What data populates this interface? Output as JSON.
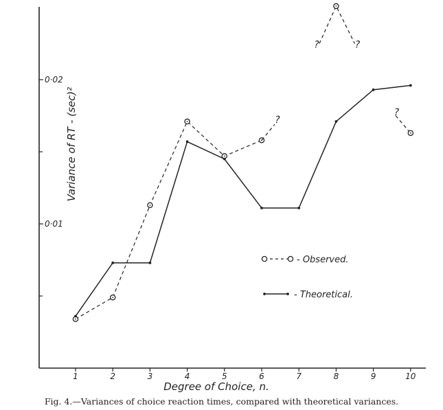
{
  "chart_data": {
    "type": "line",
    "ylabel": "Variance of RT - (sec)²",
    "xlabel": "Degree of Choice, n.",
    "caption": "Fig. 4.—Variances of choice reaction times, compared with theoretical variances.",
    "x_ticks": [
      "1",
      "2",
      "3",
      "4",
      "5",
      "6",
      "7",
      "8",
      "9",
      "10"
    ],
    "y_ticks": [
      {
        "value": 0.01,
        "label": "0·01"
      },
      {
        "value": 0.02,
        "label": "0·02"
      }
    ],
    "y_minor_ticks": [
      0.005,
      0.015
    ],
    "xlim": [
      0,
      10.2
    ],
    "ylim": [
      0,
      0.0255
    ],
    "series": [
      {
        "name": "Observed",
        "legend_label": "- Observed.",
        "style": "dashed-circle",
        "points": [
          [
            1,
            0.0034
          ],
          [
            2,
            0.0049
          ],
          [
            3,
            0.0113
          ],
          [
            4,
            0.0171
          ],
          [
            5,
            0.0147
          ],
          [
            6,
            0.0158
          ]
        ],
        "uncertain": {
          "label": "?",
          "from": [
            6,
            0.0158
          ],
          "to": [
            6.35,
            0.0169
          ]
        }
      },
      {
        "name": "Observed (n = 7–9, uncertain)",
        "style": "dashed-circle",
        "points": [
          [
            7.55,
            0.0225
          ],
          [
            8,
            0.0251
          ],
          [
            8.5,
            0.0225
          ]
        ],
        "markers": [
          [
            8,
            0.0251
          ]
        ],
        "labels": [
          {
            "text": "?",
            "at": [
              7.55,
              0.0225
            ]
          },
          {
            "text": "?",
            "at": [
              8.5,
              0.0225
            ]
          }
        ]
      },
      {
        "name": "Observed (n = 10, uncertain)",
        "style": "dashed-circle",
        "points": [
          [
            9.6,
            0.0175
          ],
          [
            10,
            0.0163
          ]
        ],
        "markers": [
          [
            10,
            0.0163
          ]
        ],
        "labels": [
          {
            "text": "?",
            "at": [
              9.55,
              0.0178
            ]
          }
        ]
      },
      {
        "name": "Theoretical",
        "legend_label": "- Theoretical.",
        "style": "solid-dot",
        "points": [
          [
            1,
            0.0036
          ],
          [
            2,
            0.0073
          ],
          [
            3,
            0.0073
          ],
          [
            4,
            0.0157
          ],
          [
            5,
            0.0145
          ],
          [
            6,
            0.0111
          ],
          [
            7,
            0.0111
          ],
          [
            8,
            0.0171
          ],
          [
            9,
            0.0193
          ],
          [
            10,
            0.0196
          ]
        ]
      }
    ],
    "legend": {
      "placement": "lower-right"
    }
  }
}
